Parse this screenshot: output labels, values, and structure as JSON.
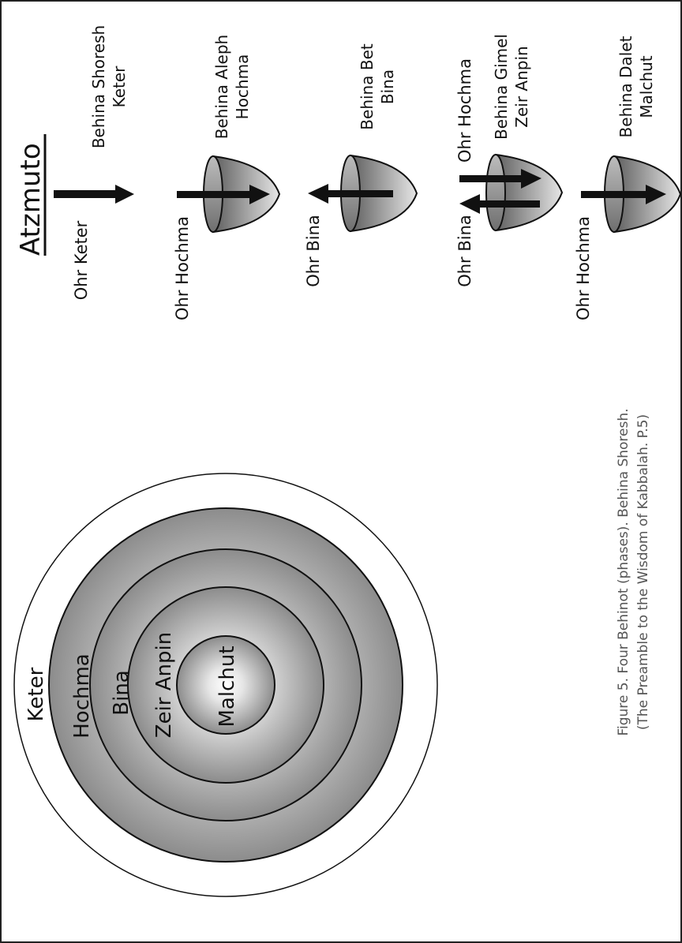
{
  "title": "Atzmuto",
  "phases": [
    {
      "line1": "Behina Shoresh",
      "line2": "Keter",
      "light": "Ohr Keter"
    },
    {
      "line1": "Behina Aleph",
      "line2": "Hochma",
      "light": "Ohr Hochma"
    },
    {
      "line1": "Behina Bet",
      "line2": "Bina",
      "light": "Ohr Bina"
    },
    {
      "line1": "Behina Gimel",
      "line2": "Zeir Anpin",
      "light_left": "Ohr Bina",
      "light_right": "Ohr Hochma"
    },
    {
      "line1": "Behina Dalet",
      "line2": "Malchut",
      "light": "Ohr Hochma"
    }
  ],
  "rings": {
    "keter": "Keter",
    "hochma": "Hochma",
    "bina": "Bina",
    "zeir_anpin": "Zeir Anpin",
    "malchut": "Malchut"
  },
  "caption": {
    "line1": "Figure 5. Four Behinot (phases). Behina Shoresh.",
    "line2": "(The Preamble to the Wisdom of Kabbalah. P.5)"
  }
}
